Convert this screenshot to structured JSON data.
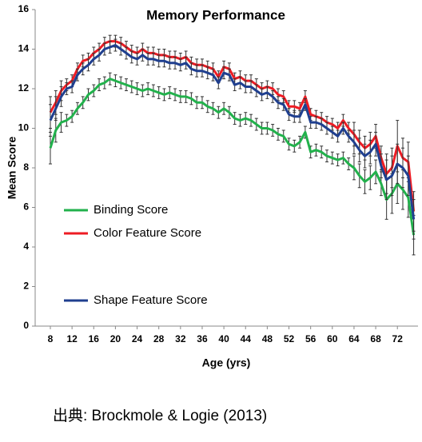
{
  "chart_data": {
    "type": "line",
    "title": "Memory Performance",
    "x_label": "Age (yrs)",
    "y_label": "Mean Score",
    "x": [
      8,
      9,
      10,
      11,
      12,
      13,
      14,
      15,
      16,
      17,
      18,
      19,
      20,
      21,
      22,
      23,
      24,
      25,
      26,
      27,
      28,
      29,
      30,
      31,
      32,
      33,
      34,
      35,
      36,
      37,
      38,
      39,
      40,
      41,
      42,
      43,
      44,
      45,
      46,
      47,
      48,
      49,
      50,
      51,
      52,
      53,
      54,
      55,
      56,
      57,
      58,
      59,
      60,
      61,
      62,
      63,
      64,
      65,
      66,
      67,
      68,
      69,
      70,
      71,
      72,
      73,
      74,
      75
    ],
    "series": [
      {
        "name": "Binding Score",
        "color": "#22b14c",
        "values": [
          9.0,
          9.9,
          10.3,
          10.4,
          10.6,
          11.0,
          11.3,
          11.7,
          11.9,
          12.2,
          12.3,
          12.5,
          12.4,
          12.3,
          12.2,
          12.1,
          12.0,
          11.9,
          12.0,
          11.9,
          11.8,
          11.7,
          11.8,
          11.7,
          11.6,
          11.6,
          11.5,
          11.3,
          11.3,
          11.1,
          11.0,
          10.8,
          11.0,
          10.8,
          10.5,
          10.4,
          10.5,
          10.4,
          10.2,
          10.0,
          10.0,
          9.9,
          9.7,
          9.6,
          9.2,
          9.1,
          9.3,
          9.8,
          8.8,
          8.9,
          8.8,
          8.6,
          8.5,
          8.4,
          8.5,
          8.2,
          8.0,
          7.6,
          7.3,
          7.5,
          7.8,
          7.2,
          6.4,
          6.7,
          7.2,
          6.9,
          6.5,
          4.6
        ],
        "errors": [
          0.8,
          0.6,
          0.5,
          0.3,
          0.3,
          0.3,
          0.3,
          0.3,
          0.3,
          0.3,
          0.3,
          0.3,
          0.3,
          0.3,
          0.3,
          0.3,
          0.3,
          0.3,
          0.3,
          0.3,
          0.3,
          0.3,
          0.3,
          0.3,
          0.3,
          0.3,
          0.3,
          0.3,
          0.3,
          0.3,
          0.3,
          0.3,
          0.3,
          0.3,
          0.3,
          0.3,
          0.3,
          0.3,
          0.3,
          0.3,
          0.3,
          0.3,
          0.3,
          0.3,
          0.3,
          0.3,
          0.3,
          0.3,
          0.3,
          0.3,
          0.3,
          0.3,
          0.3,
          0.3,
          0.3,
          0.3,
          0.6,
          0.6,
          0.6,
          0.6,
          0.6,
          0.6,
          1.0,
          1.0,
          1.0,
          1.0,
          1.0,
          1.0
        ]
      },
      {
        "name": "Color Feature Score",
        "color": "#ee1c24",
        "values": [
          10.8,
          11.3,
          11.9,
          12.2,
          12.4,
          13.0,
          13.4,
          13.5,
          13.8,
          14.0,
          14.3,
          14.4,
          14.4,
          14.3,
          14.1,
          13.9,
          13.8,
          14.0,
          13.8,
          13.8,
          13.7,
          13.7,
          13.6,
          13.6,
          13.5,
          13.6,
          13.3,
          13.2,
          13.2,
          13.1,
          13.0,
          12.6,
          13.1,
          13.0,
          12.5,
          12.6,
          12.4,
          12.4,
          12.2,
          12.0,
          12.1,
          12.0,
          11.7,
          11.6,
          11.1,
          11.1,
          11.0,
          11.6,
          10.7,
          10.6,
          10.5,
          10.3,
          10.2,
          10.0,
          10.4,
          10.0,
          9.7,
          9.3,
          9.0,
          9.2,
          9.6,
          8.5,
          7.7,
          8.0,
          9.1,
          8.5,
          8.3,
          5.8
        ],
        "errors": [
          0.8,
          0.6,
          0.5,
          0.3,
          0.3,
          0.3,
          0.3,
          0.3,
          0.3,
          0.3,
          0.3,
          0.3,
          0.3,
          0.3,
          0.3,
          0.3,
          0.3,
          0.3,
          0.3,
          0.3,
          0.3,
          0.3,
          0.3,
          0.3,
          0.3,
          0.3,
          0.3,
          0.3,
          0.3,
          0.3,
          0.3,
          0.3,
          0.3,
          0.3,
          0.3,
          0.3,
          0.3,
          0.3,
          0.3,
          0.3,
          0.3,
          0.3,
          0.3,
          0.3,
          0.3,
          0.3,
          0.3,
          0.3,
          0.3,
          0.3,
          0.3,
          0.3,
          0.3,
          0.3,
          0.3,
          0.3,
          0.6,
          0.6,
          0.6,
          0.6,
          0.6,
          0.6,
          1.0,
          1.0,
          1.3,
          1.0,
          1.0,
          1.0
        ]
      },
      {
        "name": "Shape Feature Score",
        "color": "#1f3f8f",
        "values": [
          10.4,
          11.0,
          11.6,
          12.0,
          12.1,
          12.7,
          13.0,
          13.2,
          13.5,
          13.7,
          14.0,
          14.1,
          14.2,
          14.0,
          13.8,
          13.6,
          13.5,
          13.7,
          13.5,
          13.5,
          13.4,
          13.4,
          13.3,
          13.3,
          13.2,
          13.3,
          13.0,
          12.9,
          12.9,
          12.8,
          12.7,
          12.3,
          12.8,
          12.7,
          12.2,
          12.3,
          12.1,
          12.1,
          11.9,
          11.7,
          11.8,
          11.6,
          11.3,
          11.2,
          10.7,
          10.6,
          10.6,
          11.2,
          10.3,
          10.3,
          10.2,
          10.0,
          9.8,
          9.6,
          10.0,
          9.6,
          9.3,
          8.9,
          8.6,
          8.8,
          9.2,
          8.1,
          7.4,
          7.6,
          8.2,
          8.0,
          7.6,
          5.4
        ],
        "errors": [
          0.8,
          0.6,
          0.5,
          0.3,
          0.3,
          0.3,
          0.3,
          0.3,
          0.3,
          0.3,
          0.3,
          0.3,
          0.3,
          0.3,
          0.3,
          0.3,
          0.3,
          0.3,
          0.3,
          0.3,
          0.3,
          0.3,
          0.3,
          0.3,
          0.3,
          0.3,
          0.3,
          0.3,
          0.3,
          0.3,
          0.3,
          0.3,
          0.3,
          0.3,
          0.3,
          0.3,
          0.3,
          0.3,
          0.3,
          0.3,
          0.3,
          0.3,
          0.3,
          0.3,
          0.3,
          0.3,
          0.3,
          0.3,
          0.3,
          0.3,
          0.3,
          0.3,
          0.3,
          0.3,
          0.3,
          0.3,
          0.6,
          0.6,
          0.6,
          0.6,
          0.6,
          0.6,
          1.0,
          1.0,
          1.0,
          1.0,
          1.0,
          1.0
        ]
      }
    ],
    "xlim": [
      5.2,
      75.8
    ],
    "ylim": [
      0,
      16
    ],
    "xticks": [
      8,
      12,
      16,
      20,
      24,
      28,
      32,
      36,
      40,
      44,
      48,
      52,
      56,
      60,
      64,
      68,
      72
    ],
    "yticks": [
      0,
      2,
      4,
      6,
      8,
      10,
      12,
      14,
      16
    ],
    "error_bar_color": "#333333"
  },
  "source": "出典: Brockmole & Logie (2013)"
}
